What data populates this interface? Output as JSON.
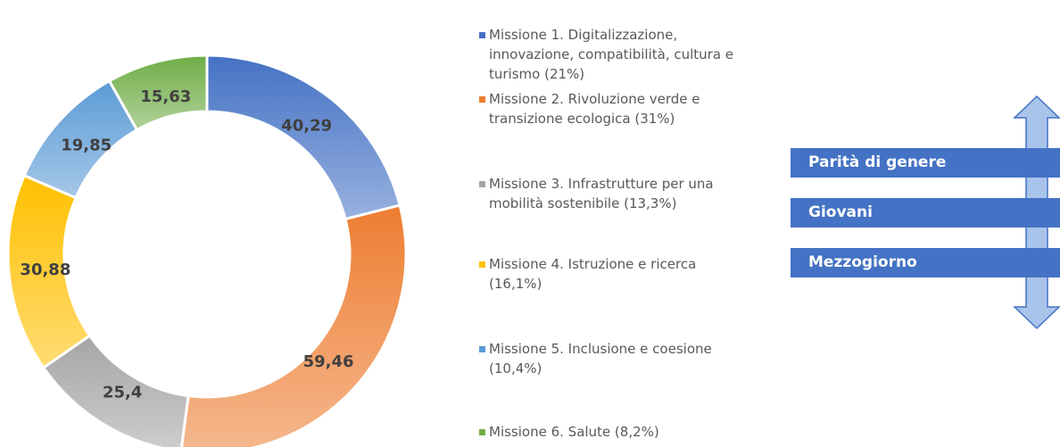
{
  "chart_data": {
    "type": "donut",
    "categories": [
      "Missione 1. Digitalizzazione, innovazione, compatibilità, cultura e turismo (21%)",
      "Missione 2. Rivoluzione verde e transizione ecologica (31%)",
      "Missione 3. Infrastrutture per una mobilità sostenibile (13,3%)",
      "Missione 4. Istruzione e ricerca (16,1%)",
      "Missione 5. Inclusione e coesione (10,4%)",
      "Missione 6. Salute (8,2%)"
    ],
    "values": [
      40.29,
      59.46,
      25.4,
      30.88,
      19.85,
      15.63
    ],
    "value_labels": [
      "40,29",
      "59,46",
      "25,4",
      "30,88",
      "19,85",
      "15,63"
    ],
    "colors": [
      "#4472c4",
      "#ed7d31",
      "#a5a5a5",
      "#ffc000",
      "#5b9bd5",
      "#70ad47"
    ],
    "legend": "right"
  },
  "diagram": {
    "labels": [
      "Parità di genere",
      "Giovani",
      "Mezzogiorno"
    ]
  }
}
